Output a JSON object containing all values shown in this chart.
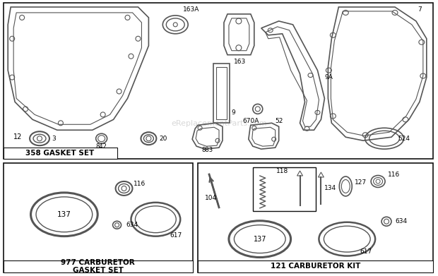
{
  "bg_color": "#ffffff",
  "line_color": "#555555",
  "watermark": "eReplacementParts.com",
  "box1_label": "358 GASKET SET",
  "box2_label": "977 CARBURETOR\nGASKET SET",
  "box3_label": "121 CARBURETOR KIT"
}
